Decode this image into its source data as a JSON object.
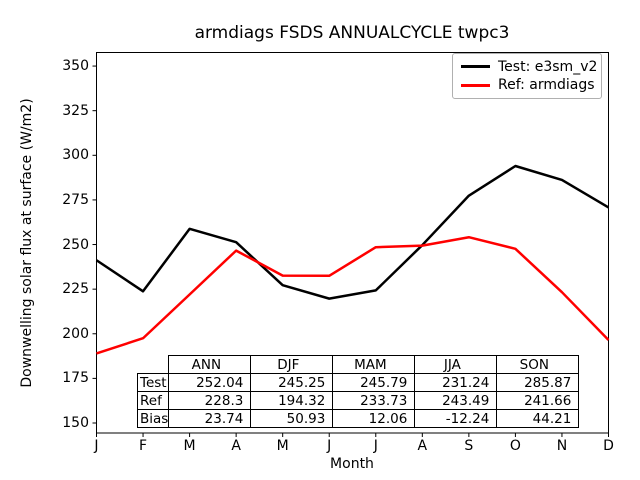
{
  "chart_data": {
    "type": "line",
    "title": "armdiags FSDS ANNUALCYCLE twpc3",
    "xlabel": "Month",
    "ylabel": "Downwelling solar flux at surface (W/m2)",
    "x_ticklabels": [
      "J",
      "F",
      "M",
      "A",
      "M",
      "J",
      "J",
      "A",
      "S",
      "O",
      "N",
      "D"
    ],
    "y_ticks": [
      150,
      175,
      200,
      225,
      250,
      275,
      300,
      325,
      350
    ],
    "ylim": [
      144.4,
      357.6
    ],
    "xlim": [
      0,
      11
    ],
    "grid": false,
    "legend_position": "upper right",
    "series": [
      {
        "name": "Test: e3sm_v2",
        "color": "#000000",
        "values": [
          241.2,
          223.8,
          258.8,
          251.3,
          227.2,
          219.7,
          224.3,
          249.7,
          277.4,
          294.0,
          286.2,
          270.8
        ]
      },
      {
        "name": "Ref: armdiags",
        "color": "#ff0000",
        "values": [
          189.0,
          197.5,
          222.0,
          246.6,
          232.6,
          232.5,
          248.5,
          249.4,
          254.1,
          247.6,
          223.3,
          196.5
        ]
      }
    ],
    "table": {
      "col_headers": [
        "ANN",
        "DJF",
        "MAM",
        "JJA",
        "SON"
      ],
      "row_labels": [
        "Test",
        "Ref",
        "Bias"
      ],
      "rows": [
        [
          "252.04",
          "245.25",
          "245.79",
          "231.24",
          "285.87"
        ],
        [
          "228.3",
          "194.32",
          "233.73",
          "243.49",
          "241.66"
        ],
        [
          "23.74",
          "50.93",
          "12.06",
          "-12.24",
          "44.21"
        ]
      ]
    }
  }
}
